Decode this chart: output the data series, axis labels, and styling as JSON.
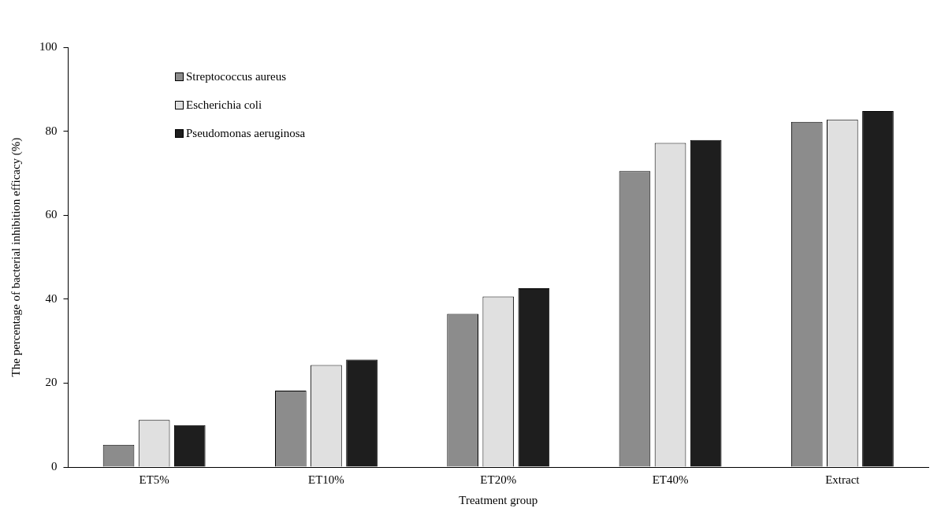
{
  "chart_data": {
    "type": "bar",
    "xlabel": "Treatment group",
    "ylabel": "The percentage of bacterial inhibition efficacy (%)",
    "categories": [
      "ET5%",
      "ET10%",
      "ET20%",
      "ET40%",
      "Extract"
    ],
    "series": [
      {
        "name": "Streptococcus aureus",
        "color": "#8c8c8c",
        "values": [
          5.3,
          18.2,
          36.5,
          70.5,
          82.2
        ]
      },
      {
        "name": "Escherichia coli",
        "color": "#e0e0e0",
        "values": [
          11.2,
          24.3,
          40.6,
          77.2,
          82.8
        ]
      },
      {
        "name": "Pseudomonas aeruginosa",
        "color": "#1e1e1e",
        "values": [
          10,
          25.6,
          42.6,
          77.9,
          84.8
        ]
      }
    ],
    "ylim": [
      0,
      100
    ],
    "yticks": [
      0,
      20,
      40,
      60,
      80,
      100
    ],
    "grid": false,
    "legend": "top left"
  }
}
